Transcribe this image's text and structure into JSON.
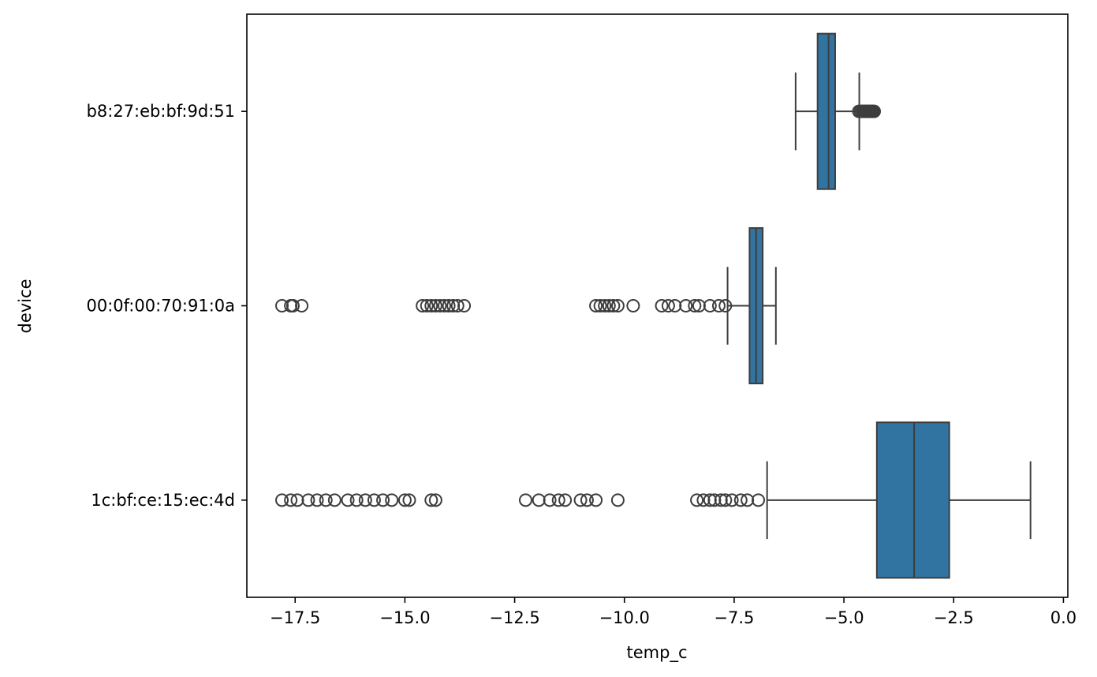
{
  "chart_data": {
    "type": "boxplot",
    "orientation": "horizontal",
    "xlabel": "temp_c",
    "ylabel": "device",
    "xlim": [
      -18.6,
      0.1
    ],
    "x_ticks": [
      -17.5,
      -15.0,
      -12.5,
      -10.0,
      -7.5,
      -5.0,
      -2.5,
      0.0
    ],
    "x_tick_labels": [
      "−17.5",
      "−15.0",
      "−12.5",
      "−10.0",
      "−7.5",
      "−5.0",
      "−2.5",
      "0.0"
    ],
    "categories": [
      "b8:27:eb:bf:9d:51",
      "00:0f:00:70:91:0a",
      "1c:bf:ce:15:ec:4d"
    ],
    "colors": {
      "box_fill": "#3274a1",
      "line": "#3d3d3d",
      "frame": "#000000"
    },
    "grid": false,
    "boxes": [
      {
        "category": "b8:27:eb:bf:9d:51",
        "whisker_low": -6.1,
        "q1": -5.6,
        "median": -5.35,
        "q3": -5.2,
        "whisker_high": -4.65,
        "outliers": [
          -4.66,
          -4.62,
          -4.58,
          -4.55,
          -4.52,
          -4.49,
          -4.46,
          -4.43,
          -4.4,
          -4.37,
          -4.34,
          -4.31
        ]
      },
      {
        "category": "00:0f:00:70:91:0a",
        "whisker_low": -7.65,
        "q1": -7.15,
        "median": -7.0,
        "q3": -6.85,
        "whisker_high": -6.55,
        "outliers": [
          -17.8,
          -17.6,
          -17.55,
          -17.35,
          -14.6,
          -14.5,
          -14.4,
          -14.3,
          -14.2,
          -14.1,
          -14.0,
          -13.9,
          -13.8,
          -13.65,
          -10.65,
          -10.55,
          -10.45,
          -10.35,
          -10.25,
          -10.15,
          -9.8,
          -9.15,
          -9.0,
          -8.85,
          -8.6,
          -8.4,
          -8.3,
          -8.05,
          -7.85,
          -7.7
        ]
      },
      {
        "category": "1c:bf:ce:15:ec:4d",
        "whisker_low": -6.75,
        "q1": -4.25,
        "median": -3.4,
        "q3": -2.6,
        "whisker_high": -0.75,
        "outliers": [
          -17.8,
          -17.6,
          -17.45,
          -17.2,
          -17.0,
          -16.8,
          -16.6,
          -16.3,
          -16.1,
          -15.9,
          -15.7,
          -15.5,
          -15.3,
          -15.0,
          -14.9,
          -14.4,
          -14.3,
          -12.25,
          -11.95,
          -11.7,
          -11.5,
          -11.35,
          -11.0,
          -10.85,
          -10.65,
          -10.15,
          -8.35,
          -8.2,
          -8.05,
          -7.95,
          -7.8,
          -7.7,
          -7.55,
          -7.35,
          -7.2,
          -6.95
        ]
      }
    ]
  }
}
